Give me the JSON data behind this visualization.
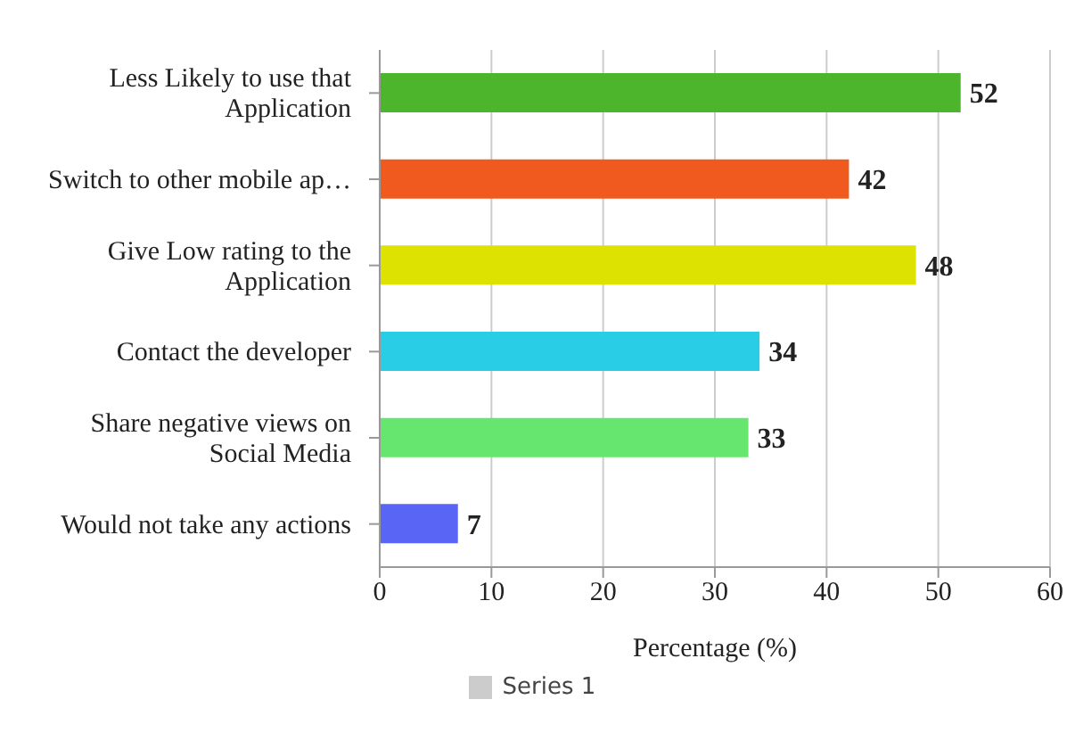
{
  "chart_data": {
    "type": "bar",
    "orientation": "horizontal",
    "xlabel": "Percentage (%)",
    "categories": [
      "Less Likely to use that Application",
      "Switch to other mobile ap…",
      "Give Low rating to the Application",
      "Contact the developer",
      "Share negative views on Social Media",
      "Would not take any actions"
    ],
    "series": [
      {
        "name": "Series 1",
        "color": "#cccccc",
        "colors": [
          "#4cb52c",
          "#f05a1e",
          "#dde200",
          "#29cde6",
          "#66e66f",
          "#5865f5"
        ],
        "values": [
          52,
          42,
          48,
          34,
          33,
          7
        ]
      }
    ],
    "xlim": [
      0,
      60
    ],
    "xticks": [
      0,
      10,
      20,
      30,
      40,
      50,
      60
    ],
    "grid": "x",
    "legend": "bottom",
    "data_labels": true
  }
}
